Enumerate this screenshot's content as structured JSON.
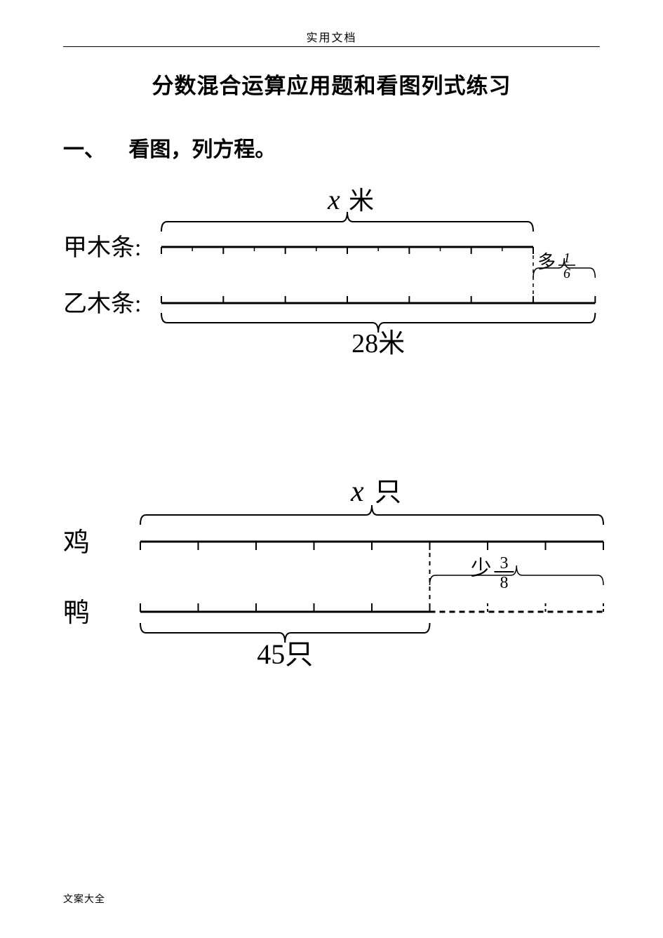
{
  "header": {
    "tag": "实用文档"
  },
  "title": "分数混合运算应用题和看图列式练习",
  "section": {
    "index": "一、",
    "heading": "看图，列方程。"
  },
  "footer": "文案大全",
  "problem1": {
    "x_var": "x",
    "x_unit": "米",
    "row1_label": "甲木条:",
    "row2_label": "乙木条:",
    "diff_prefix": "多",
    "diff_num": "1",
    "diff_den": "6",
    "bottom_value": "28米",
    "colors": {
      "stroke": "#000000"
    },
    "bar1_segments": 6,
    "bar2_segments": 7
  },
  "problem2": {
    "x_var": "x",
    "x_unit": "只",
    "row1_label": "鸡",
    "row2_label": "鸭",
    "diff_prefix": "少",
    "diff_num": "3",
    "diff_den": "8",
    "bottom_value": "45只",
    "colors": {
      "stroke": "#000000"
    },
    "bar1_segments": 8,
    "bar2_solid_segments": 5,
    "bar2_dashed_segments": 3
  }
}
